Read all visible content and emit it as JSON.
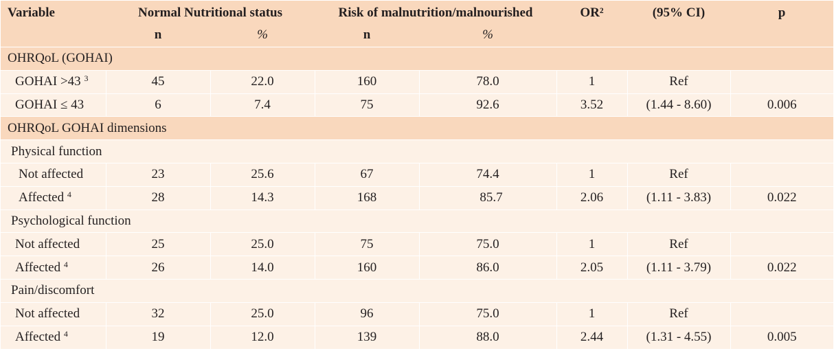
{
  "header": {
    "variable": "Variable",
    "normal": "Normal Nutritional status",
    "risk": "Risk of malnutrition/malnourished",
    "or": "OR²",
    "ci": "(95% CI)",
    "p": "p",
    "n1": "n",
    "pct1": "%",
    "n2": "n",
    "pct2": "%"
  },
  "sections": {
    "gohai": "OHRQoL (GOHAI)",
    "dimensions": "OHRQoL GOHAI dimensions",
    "physical": "Physical function",
    "psychological": "Psychological function",
    "pain": "Pain/discomfort"
  },
  "rows": {
    "gohai_gt43": {
      "label": "GOHAI >43",
      "sup": "3",
      "n1": "45",
      "pct1": "22.0",
      "n2": "160",
      "pct2": "78.0",
      "or": "1",
      "ci": "Ref",
      "p": ""
    },
    "gohai_le43": {
      "label": "GOHAI ≤ 43",
      "sup": "",
      "n1": "6",
      "pct1": "7.4",
      "n2": "75",
      "pct2": "92.6",
      "or": "3.52",
      "ci": "(1.44 - 8.60)",
      "p": "0.006"
    },
    "phys_not": {
      "label": "Not affected",
      "sup": "",
      "n1": "23",
      "pct1": "25.6",
      "n2": "67",
      "pct2": "74.4",
      "or": "1",
      "ci": "Ref",
      "p": ""
    },
    "phys_aff": {
      "label": "Affected",
      "sup": "4",
      "n1": "28",
      "pct1": "14.3",
      "n2": "168",
      "pct2": "85.7",
      "or": "2.06",
      "ci": "(1.11 - 3.83)",
      "p": "0.022"
    },
    "psy_not": {
      "label": "Not affected",
      "sup": "",
      "n1": "25",
      "pct1": "25.0",
      "n2": "75",
      "pct2": "75.0",
      "or": "1",
      "ci": "Ref",
      "p": ""
    },
    "psy_aff": {
      "label": "Affected",
      "sup": "4",
      "n1": "26",
      "pct1": "14.0",
      "n2": "160",
      "pct2": "86.0",
      "or": "2.05",
      "ci": "(1.11 - 3.79)",
      "p": "0.022"
    },
    "pain_not": {
      "label": "Not affected",
      "sup": "",
      "n1": "32",
      "pct1": "25.0",
      "n2": "96",
      "pct2": "75.0",
      "or": "1",
      "ci": "Ref",
      "p": ""
    },
    "pain_aff": {
      "label": "Affected",
      "sup": "4",
      "n1": "19",
      "pct1": "12.0",
      "n2": "139",
      "pct2": "88.0",
      "or": "2.44",
      "ci": "(1.31 - 4.55)",
      "p": "0.005"
    }
  },
  "colors": {
    "header_bg": "#f9d8bd",
    "row_bg": "#fdf1e6",
    "text": "#231f20"
  }
}
